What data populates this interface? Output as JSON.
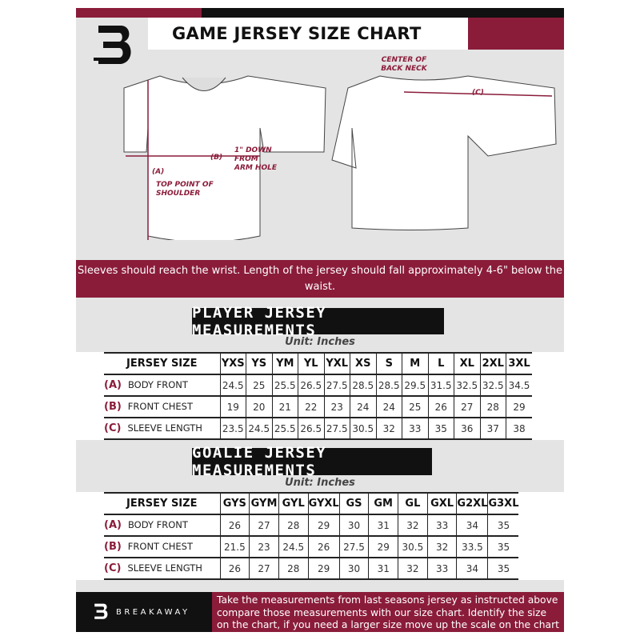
{
  "header": {
    "title": "GAME JERSEY SIZE CHART",
    "logo_letter": "B"
  },
  "diagram": {
    "front_labels": {
      "a": "(A)",
      "a_note": "TOP POINT OF SHOULDER",
      "b": "(B)",
      "b_note": "1\" DOWN FROM ARM HOLE"
    },
    "back_labels": {
      "c": "(C)",
      "c_note": "CENTER OF BACK NECK"
    }
  },
  "banner": {
    "text": "Sleeves should reach the wrist. Length of the jersey should fall approximately 4-6\" below the waist."
  },
  "player": {
    "heading": "PLAYER JERSEY MEASUREMENTS",
    "unit": "Unit: Inches",
    "size_header": "JERSEY SIZE",
    "sizes": [
      "YXS",
      "YS",
      "YM",
      "YL",
      "YXL",
      "XS",
      "S",
      "M",
      "L",
      "XL",
      "2XL",
      "3XL"
    ],
    "rows": [
      {
        "key": "(A)",
        "label": "BODY FRONT",
        "values": [
          "24.5",
          "25",
          "25.5",
          "26.5",
          "27.5",
          "28.5",
          "28.5",
          "29.5",
          "31.5",
          "32.5",
          "32.5",
          "34.5"
        ]
      },
      {
        "key": "(B)",
        "label": "FRONT CHEST",
        "values": [
          "19",
          "20",
          "21",
          "22",
          "23",
          "24",
          "24",
          "25",
          "26",
          "27",
          "28",
          "29"
        ]
      },
      {
        "key": "(C)",
        "label": "SLEEVE LENGTH",
        "values": [
          "23.5",
          "24.5",
          "25.5",
          "26.5",
          "27.5",
          "30.5",
          "32",
          "33",
          "35",
          "36",
          "37",
          "38"
        ]
      }
    ]
  },
  "goalie": {
    "heading": "GOALIE JERSEY MEASUREMENTS",
    "unit": "Unit: Inches",
    "size_header": "JERSEY SIZE",
    "sizes": [
      "GYS",
      "GYM",
      "GYL",
      "GYXL",
      "GS",
      "GM",
      "GL",
      "GXL",
      "G2XL",
      "G3XL"
    ],
    "rows": [
      {
        "key": "(A)",
        "label": "BODY FRONT",
        "values": [
          "26",
          "27",
          "28",
          "29",
          "30",
          "31",
          "32",
          "33",
          "34",
          "35"
        ]
      },
      {
        "key": "(B)",
        "label": "FRONT CHEST",
        "values": [
          "21.5",
          "23",
          "24.5",
          "26",
          "27.5",
          "29",
          "30.5",
          "32",
          "33.5",
          "35"
        ]
      },
      {
        "key": "(C)",
        "label": "SLEEVE LENGTH",
        "values": [
          "26",
          "27",
          "28",
          "29",
          "30",
          "31",
          "32",
          "33",
          "34",
          "35"
        ]
      }
    ]
  },
  "footer": {
    "brand": "BREAKAWAY",
    "text": "Take the measurements from last seasons jersey as instructed above compare those measurements  with our size chart. Identify the size on the chart, if you need a larger size move up the scale on the chart"
  },
  "colors": {
    "maroon": "#8a1c3a",
    "black": "#111111",
    "background": "#e4e4e4"
  }
}
